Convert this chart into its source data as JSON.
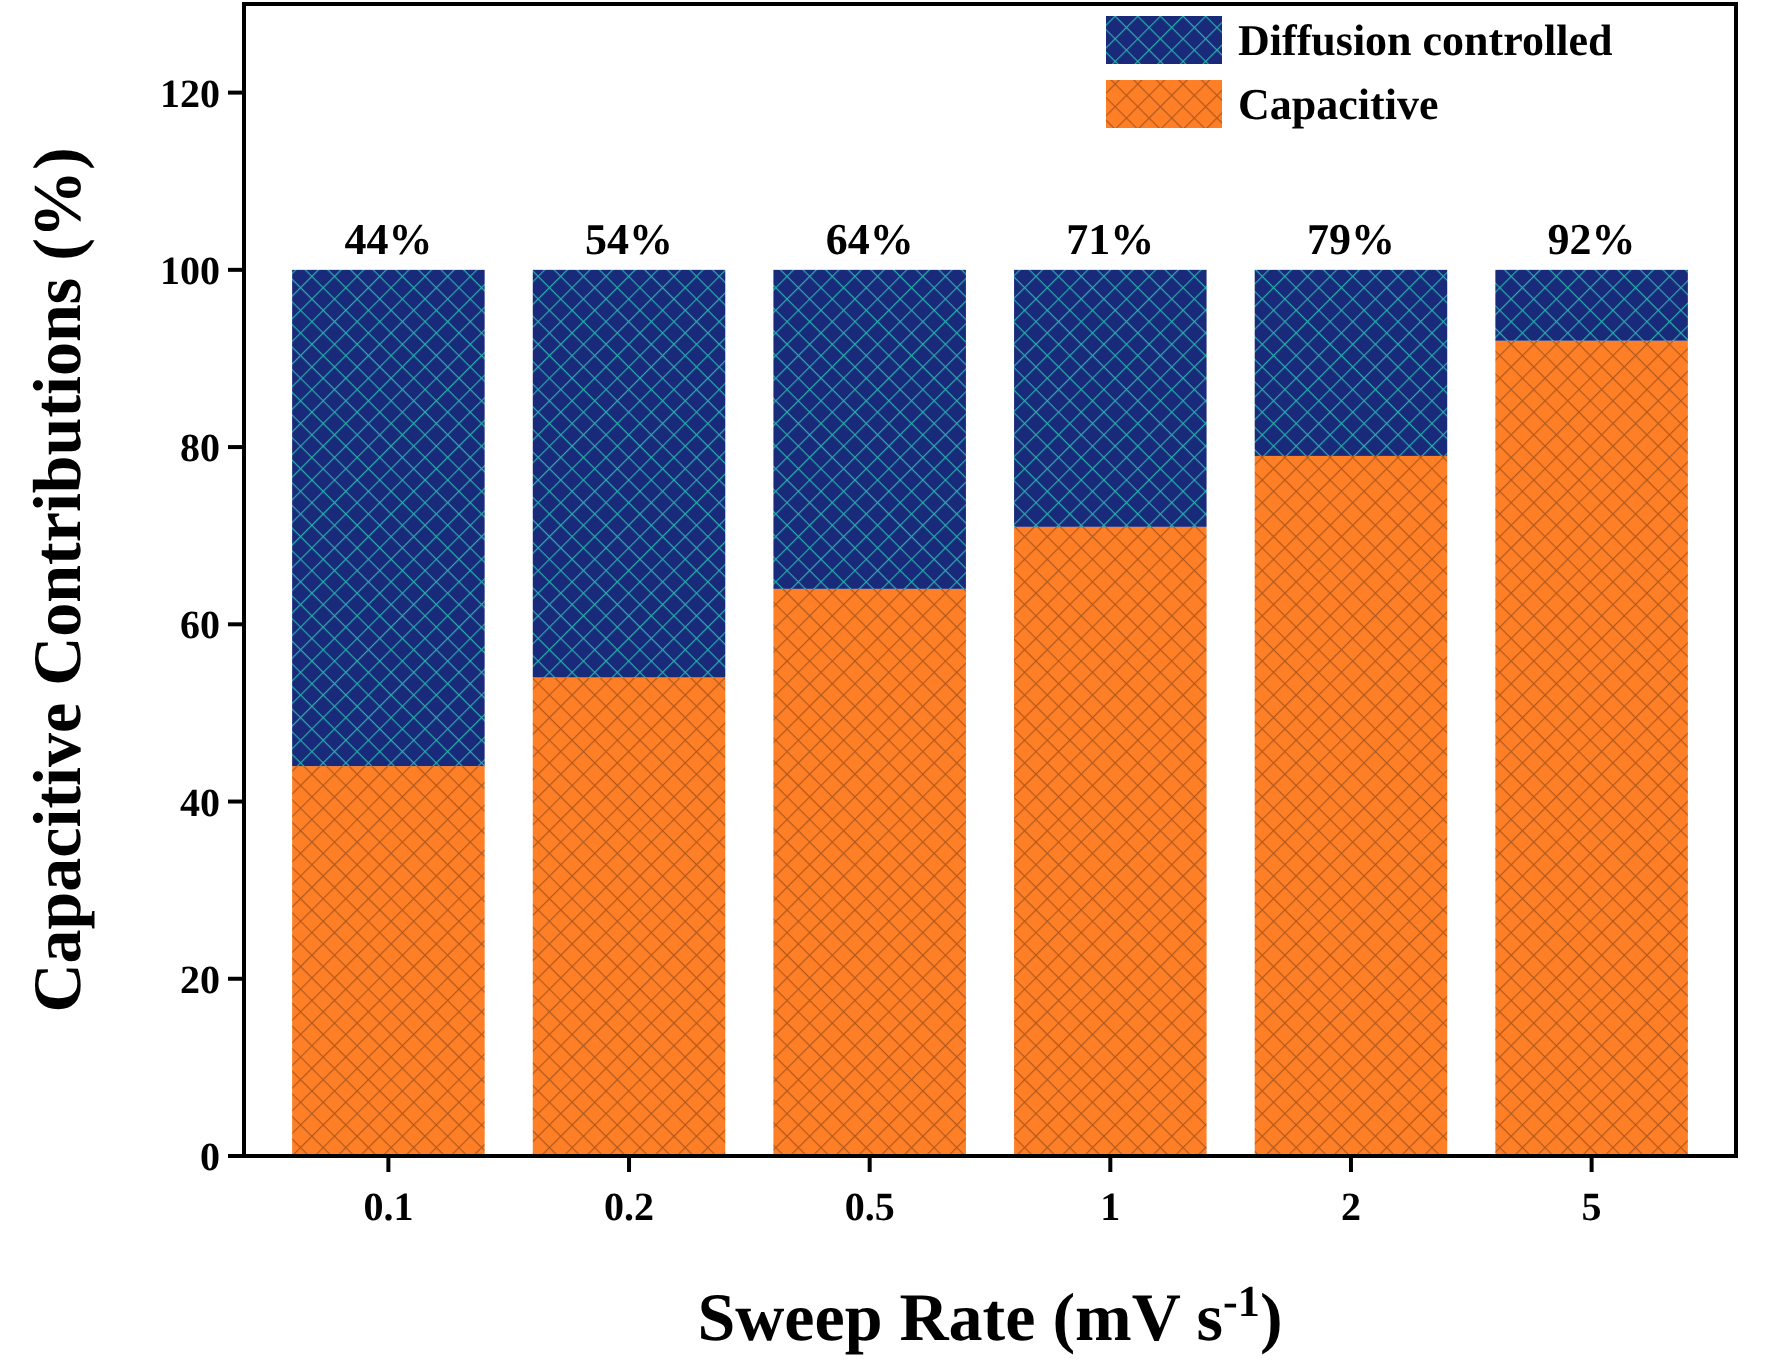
{
  "chart_data": {
    "type": "bar",
    "stacked": true,
    "xlabel": "Sweep Rate (mV s$^{-1}$)",
    "ylabel": "Capacitive Contributions (%)",
    "categories": [
      "0.1",
      "0.2",
      "0.5",
      "1",
      "2",
      "5"
    ],
    "series": [
      {
        "name": "Capacitive",
        "color": "#ff7f27",
        "values": [
          44,
          54,
          64,
          71,
          79,
          92
        ]
      },
      {
        "name": "Diffusion controlled",
        "color": "#1a2a7a",
        "values": [
          56,
          46,
          36,
          29,
          21,
          8
        ]
      }
    ],
    "annotations": [
      {
        "text": "44%",
        "x": "0.1",
        "y": 100
      },
      {
        "text": "54%",
        "x": "0.2",
        "y": 100
      },
      {
        "text": "64%",
        "x": "0.5",
        "y": 100
      },
      {
        "text": "71%",
        "x": "1",
        "y": 100
      },
      {
        "text": "79%",
        "x": "2",
        "y": 100
      },
      {
        "text": "92%",
        "x": "5",
        "y": 100
      }
    ],
    "ylim": [
      0,
      130
    ],
    "yticks": [
      0,
      20,
      40,
      60,
      80,
      100,
      120
    ],
    "legend": "top right",
    "grid": false
  }
}
